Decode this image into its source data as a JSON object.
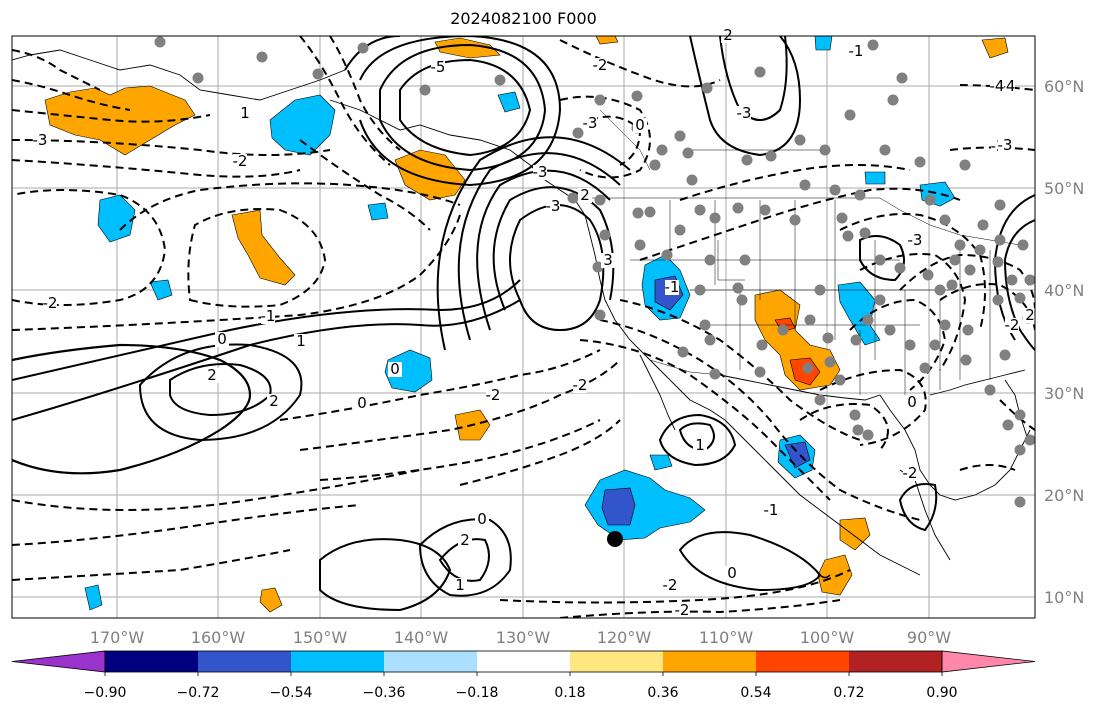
{
  "title": "2024082100 F000",
  "lon_labels": [
    "170°W",
    "160°W",
    "150°W",
    "140°W",
    "130°W",
    "120°W",
    "110°W",
    "100°W",
    "90°W"
  ],
  "lat_labels": [
    "60°N",
    "50°N",
    "40°N",
    "30°N",
    "20°N",
    "10°N"
  ],
  "colorbar": {
    "colors": [
      "#9933cc",
      "#000080",
      "#3355cc",
      "#00bfff",
      "#aadfff",
      "#ffffff",
      "#ffe680",
      "#ffa500",
      "#ff4500",
      "#b22222",
      "#ff88aa"
    ],
    "ticks": [
      "−0.90",
      "−0.72",
      "−0.54",
      "−0.36",
      "−0.18",
      "0.18",
      "0.36",
      "0.54",
      "0.72",
      "0.90"
    ]
  },
  "contour_labels": [
    "-4",
    "-3",
    "-3",
    "-3",
    "-2",
    "-1",
    "0",
    "1",
    "2",
    "2",
    "0",
    "-2",
    "-2",
    "3",
    "-3",
    "-2",
    "-1",
    "1",
    "2",
    "0",
    "1",
    "0",
    "-2",
    "2",
    "1",
    "0",
    "-3",
    "-2",
    "-3",
    "-1",
    "0",
    "-1",
    "-2",
    "-4",
    "-5",
    "2",
    "0",
    "-3",
    "-2",
    "2",
    "-2",
    "-3"
  ],
  "fill_colors": {
    "orange": "#ffa500",
    "red": "#ff4500",
    "cyan": "#00bfff",
    "blue": "#3355cc",
    "yellow": "#ffe680"
  }
}
